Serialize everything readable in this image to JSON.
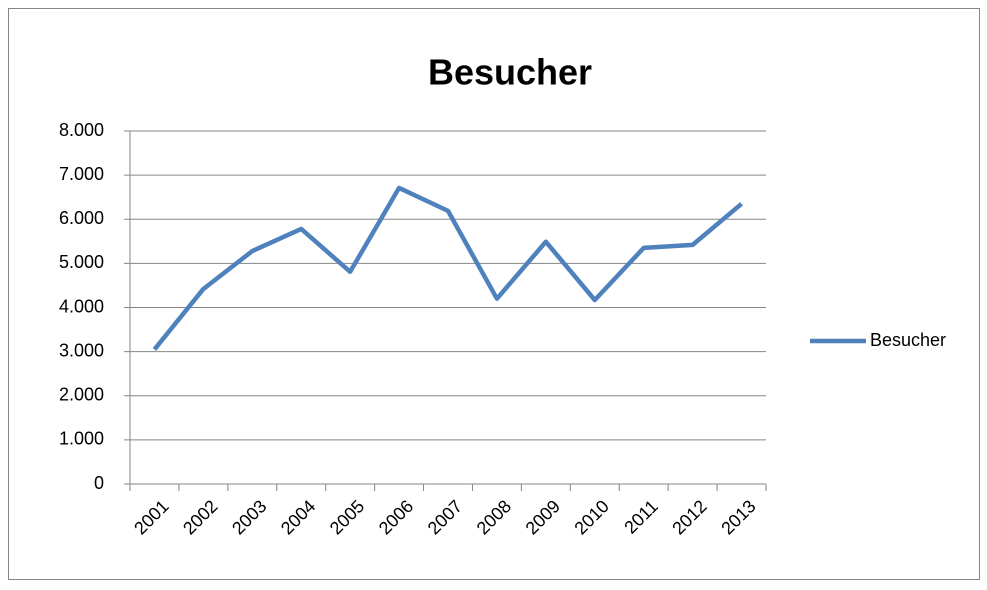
{
  "chart_data": {
    "type": "line",
    "title": "Besucher",
    "categories": [
      "2001",
      "2002",
      "2003",
      "2004",
      "2005",
      "2006",
      "2007",
      "2008",
      "2009",
      "2010",
      "2011",
      "2012",
      "2013"
    ],
    "series": [
      {
        "name": "Besucher",
        "color": "#4f81bd",
        "values": [
          3050,
          4420,
          5280,
          5780,
          4810,
          6710,
          6190,
          4200,
          5490,
          4170,
          5350,
          5420,
          6350
        ]
      }
    ],
    "ylim": [
      0,
      8000
    ],
    "yticks": [
      0,
      {
        "value": 1000,
        "label": "1.000"
      },
      {
        "value": 2000,
        "label": "2.000"
      },
      {
        "value": 3000,
        "label": "3.000"
      },
      {
        "value": 4000,
        "label": "4.000"
      },
      {
        "value": 5000,
        "label": "5.000"
      },
      {
        "value": 6000,
        "label": "6.000"
      },
      {
        "value": 7000,
        "label": "7.000"
      },
      {
        "value": 8000,
        "label": "8.000"
      }
    ],
    "grid": true,
    "legend": "right"
  }
}
